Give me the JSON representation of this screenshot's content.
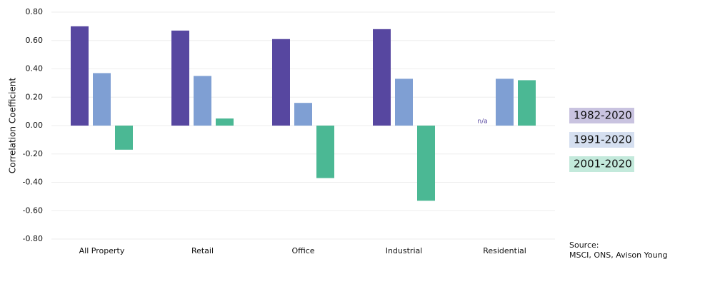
{
  "chart_data": {
    "type": "bar",
    "y_label": "Correlation Coefficient",
    "categories": [
      "All Property",
      "Retail",
      "Office",
      "Industrial",
      "Residential"
    ],
    "series": [
      {
        "name": "1982-2020",
        "color": "#5747a0",
        "legend_color": "#c9c3e0",
        "values": [
          0.7,
          0.67,
          0.61,
          0.68,
          null
        ],
        "value_labels": [
          null,
          null,
          null,
          null,
          "n/a"
        ]
      },
      {
        "name": "1991-2020",
        "color": "#7f9fd3",
        "legend_color": "#d5dff0",
        "values": [
          0.37,
          0.35,
          0.16,
          0.33,
          0.33
        ]
      },
      {
        "name": "2001-2020",
        "color": "#4bb894",
        "legend_color": "#c3e9db",
        "values": [
          -0.17,
          0.05,
          -0.37,
          -0.53,
          0.32
        ]
      }
    ],
    "ylim": [
      -0.8,
      0.8
    ],
    "yticks": [
      {
        "value": -0.8,
        "label": "-0.80"
      },
      {
        "value": -0.6,
        "label": "-0.60"
      },
      {
        "value": -0.4,
        "label": "-0.40"
      },
      {
        "value": -0.2,
        "label": "-0.20"
      },
      {
        "value": 0,
        "label": "0.00"
      },
      {
        "value": 0.2,
        "label": "0.20"
      },
      {
        "value": 0.4,
        "label": "0.40"
      },
      {
        "value": 0.6,
        "label": "0.60"
      },
      {
        "value": 0.8,
        "label": "0.80"
      }
    ],
    "grid": true,
    "source": [
      "Source:",
      "MSCI, ONS, Avison Young"
    ]
  }
}
